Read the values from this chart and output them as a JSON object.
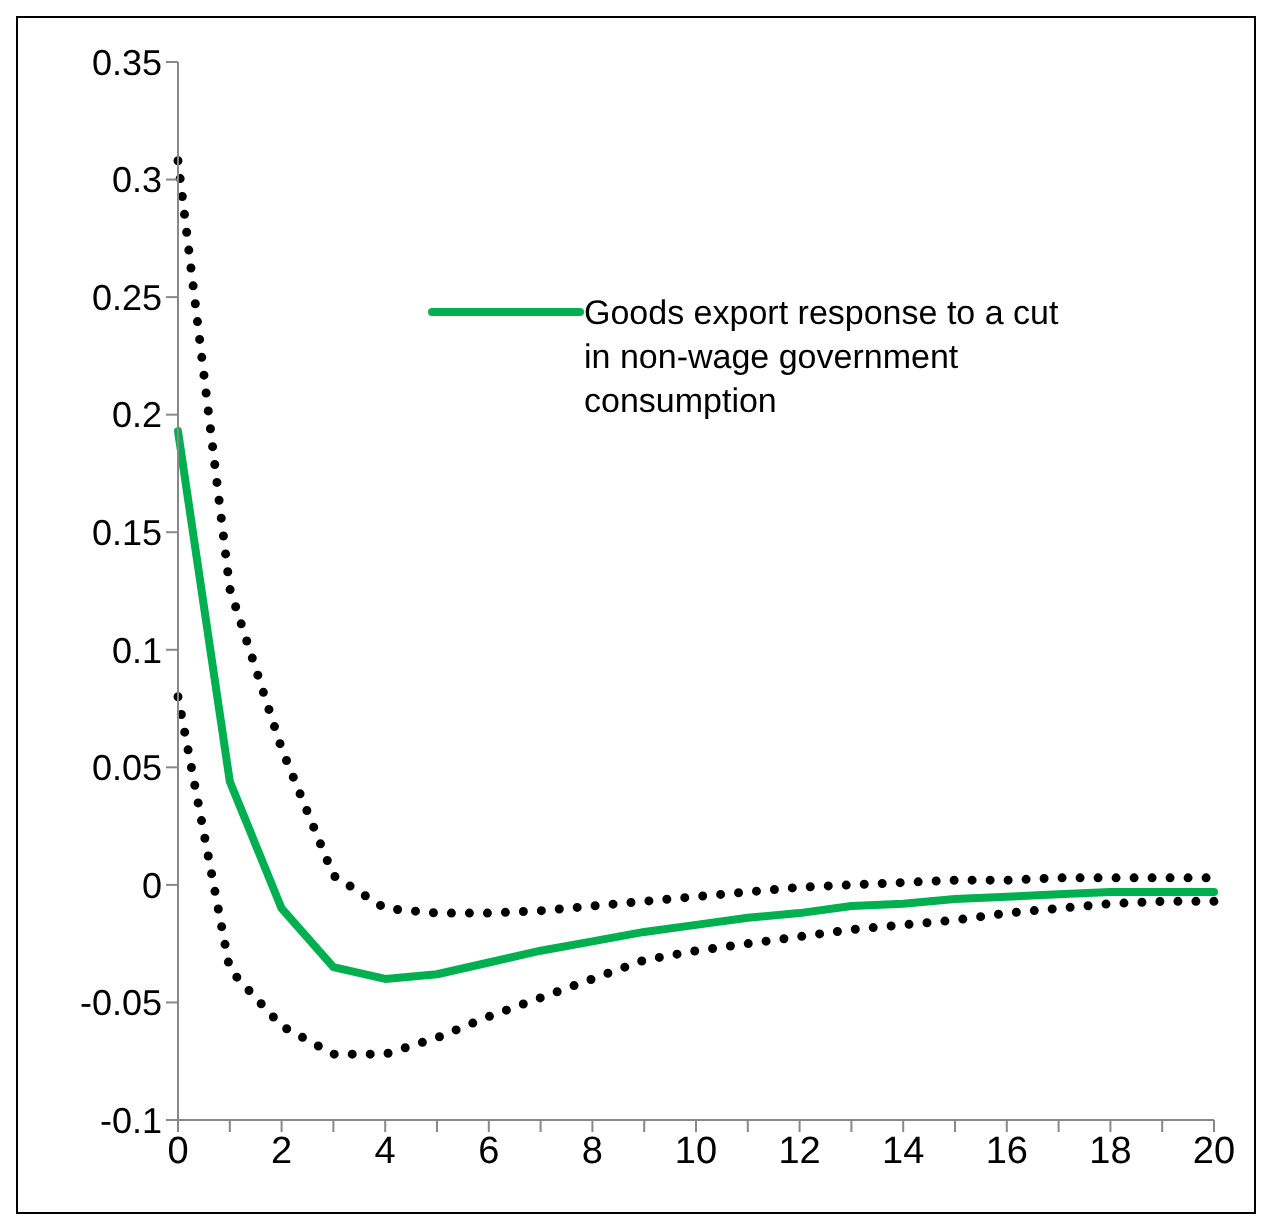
{
  "chart_data": {
    "type": "line",
    "categories": [
      "0",
      null,
      "2",
      null,
      "4",
      null,
      "6",
      null,
      "8",
      null,
      "10",
      null,
      "12",
      null,
      "14",
      null,
      "16",
      null,
      "18",
      null,
      "20"
    ],
    "series": [
      {
        "name": "Goods export response to a  cut in non-wage government consumption",
        "color": "#00b050",
        "line_style": "solid",
        "values": [
          0.193,
          0.044,
          -0.01,
          -0.035,
          -0.04,
          -0.038,
          -0.033,
          -0.028,
          -0.024,
          -0.02,
          -0.017,
          -0.014,
          -0.012,
          -0.009,
          -0.008,
          -0.006,
          -0.005,
          -0.004,
          -0.003,
          -0.003,
          -0.003
        ]
      },
      {
        "color": "#000000",
        "line_style": "dotted",
        "values": [
          0.308,
          0.126,
          0.058,
          0.004,
          -0.01,
          -0.012,
          -0.012,
          -0.011,
          -0.009,
          -0.007,
          -0.005,
          -0.003,
          -0.001,
          0.0,
          0.001,
          0.002,
          0.002,
          0.003,
          0.003,
          0.003,
          0.003
        ]
      },
      {
        "color": "#000000",
        "line_style": "dotted",
        "values": [
          0.08,
          -0.036,
          -0.06,
          -0.072,
          -0.072,
          -0.065,
          -0.056,
          -0.048,
          -0.04,
          -0.032,
          -0.028,
          -0.025,
          -0.022,
          -0.019,
          -0.017,
          -0.015,
          -0.012,
          -0.01,
          -0.008,
          -0.007,
          -0.007
        ]
      }
    ],
    "ylim": [
      -0.1,
      0.35
    ],
    "yticks": [
      -0.1,
      -0.05,
      0,
      0.05,
      0.1,
      0.15,
      0.2,
      0.25,
      0.3,
      0.35
    ],
    "grid": false,
    "legend": "top right",
    "marker": "none"
  }
}
